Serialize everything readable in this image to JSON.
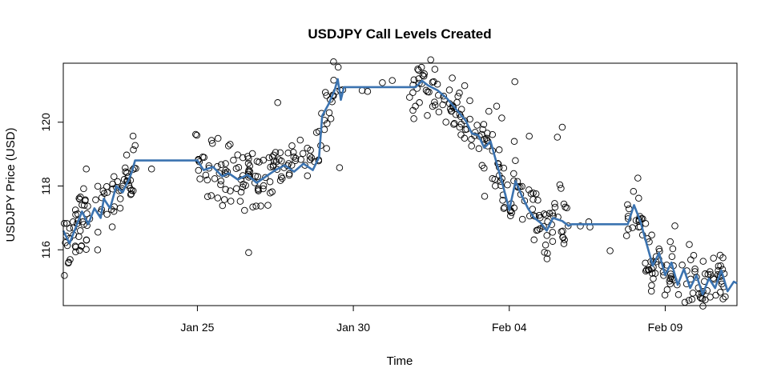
{
  "chart_data": {
    "type": "scatter",
    "title": "USDJPY Call Levels Created",
    "xlabel": "Time",
    "ylabel": "USDJPY Price (USD)",
    "x_ticks": [
      "Jan 25",
      "Jan 30",
      "Feb 04",
      "Feb 09"
    ],
    "x_tick_days": [
      25,
      30,
      35,
      40
    ],
    "xlim": [
      20.7,
      42.3
    ],
    "y_ticks": [
      116,
      118,
      120
    ],
    "ylim": [
      114.25,
      121.85
    ],
    "grid": false,
    "legend": "none",
    "colors": {
      "line": "#3b73b0",
      "points": "#000000",
      "frame": "#000000"
    },
    "series": [
      {
        "type": "line",
        "values": [
          [
            20.7,
            116.6
          ],
          [
            20.9,
            116.2
          ],
          [
            21.1,
            116.7
          ],
          [
            21.3,
            117.2
          ],
          [
            21.5,
            116.8
          ],
          [
            21.7,
            117.3
          ],
          [
            21.9,
            117.0
          ],
          [
            22.0,
            117.6
          ],
          [
            22.2,
            117.3
          ],
          [
            22.4,
            118.0
          ],
          [
            22.6,
            117.8
          ],
          [
            22.8,
            118.2
          ],
          [
            22.9,
            118.45
          ],
          [
            23.0,
            118.8
          ],
          [
            25.0,
            118.8
          ],
          [
            25.2,
            118.5
          ],
          [
            25.5,
            118.6
          ],
          [
            25.8,
            118.3
          ],
          [
            26.0,
            118.4
          ],
          [
            26.3,
            118.2
          ],
          [
            26.6,
            118.35
          ],
          [
            26.9,
            118.1
          ],
          [
            27.2,
            118.3
          ],
          [
            27.5,
            118.5
          ],
          [
            27.8,
            118.65
          ],
          [
            28.1,
            118.45
          ],
          [
            28.4,
            118.7
          ],
          [
            28.7,
            118.5
          ],
          [
            28.9,
            118.9
          ],
          [
            29.0,
            120.2
          ],
          [
            29.2,
            120.55
          ],
          [
            29.4,
            121.0
          ],
          [
            29.5,
            121.35
          ],
          [
            29.6,
            120.7
          ],
          [
            29.7,
            121.1
          ],
          [
            32.0,
            121.1
          ],
          [
            32.2,
            121.3
          ],
          [
            32.4,
            121.15
          ],
          [
            32.7,
            121.0
          ],
          [
            33.0,
            120.75
          ],
          [
            33.3,
            120.4
          ],
          [
            33.6,
            120.05
          ],
          [
            33.8,
            119.65
          ],
          [
            34.0,
            119.6
          ],
          [
            34.2,
            119.2
          ],
          [
            34.4,
            119.4
          ],
          [
            34.6,
            118.7
          ],
          [
            34.8,
            118.0
          ],
          [
            35.0,
            117.25
          ],
          [
            35.2,
            118.15
          ],
          [
            35.4,
            117.7
          ],
          [
            35.6,
            117.3
          ],
          [
            35.8,
            117.0
          ],
          [
            36.0,
            116.85
          ],
          [
            36.2,
            116.6
          ],
          [
            36.4,
            117.0
          ],
          [
            36.7,
            116.9
          ],
          [
            36.9,
            116.75
          ],
          [
            37.0,
            116.8
          ],
          [
            38.8,
            116.8
          ],
          [
            39.0,
            117.4
          ],
          [
            39.2,
            116.9
          ],
          [
            39.4,
            116.2
          ],
          [
            39.6,
            115.5
          ],
          [
            39.8,
            115.9
          ],
          [
            40.0,
            115.2
          ],
          [
            40.2,
            115.6
          ],
          [
            40.4,
            114.9
          ],
          [
            40.6,
            115.4
          ],
          [
            40.8,
            114.8
          ],
          [
            41.0,
            115.2
          ],
          [
            41.2,
            114.6
          ],
          [
            41.4,
            115.1
          ],
          [
            41.6,
            114.8
          ],
          [
            41.8,
            115.35
          ],
          [
            42.0,
            114.7
          ],
          [
            42.2,
            115.0
          ],
          [
            42.3,
            114.95
          ]
        ]
      }
    ]
  }
}
